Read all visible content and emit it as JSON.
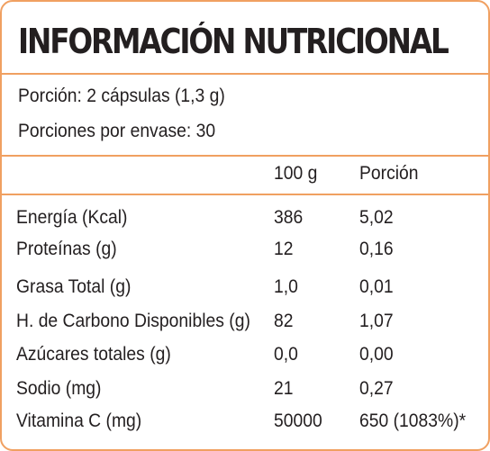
{
  "title": "INFORMACIÓN NUTRICIONAL",
  "serving": {
    "portion": "Porción: 2 cápsulas (1,3 g)",
    "per_container": "Porciones por envase: 30"
  },
  "headers": {
    "per_100g": "100 g",
    "per_portion": "Porción"
  },
  "rows": [
    {
      "name": "Energía (Kcal)",
      "per_100g": "386",
      "per_portion": "5,02"
    },
    {
      "name": "Proteínas (g)",
      "per_100g": "12",
      "per_portion": "0,16"
    },
    {
      "name": "Grasa Total (g)",
      "per_100g": "1,0",
      "per_portion": "0,01"
    },
    {
      "name": "H. de Carbono Disponibles (g)",
      "per_100g": "82",
      "per_portion": "1,07"
    },
    {
      "name": "Azúcares totales (g)",
      "per_100g": "0,0",
      "per_portion": "0,00"
    },
    {
      "name": "Sodio (mg)",
      "per_100g": "21",
      "per_portion": "0,27"
    },
    {
      "name": "Vitamina C (mg)",
      "per_100g": "50000",
      "per_portion": "650 (1083%)*"
    }
  ],
  "colors": {
    "border": "#f0a061",
    "text": "#231f20"
  }
}
